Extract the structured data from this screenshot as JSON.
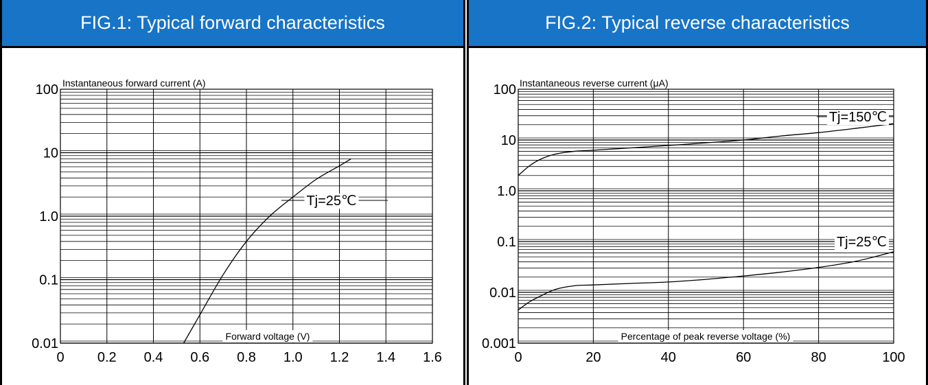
{
  "chart_data": [
    {
      "type": "line",
      "title": "FIG.1: Typical forward characteristics",
      "xlabel": "Forward voltage (V)",
      "ylabel": "Instantaneous forward current (A)",
      "xlim": [
        0,
        1.6
      ],
      "ylim": [
        0.01,
        100
      ],
      "yscale": "log",
      "grid": true,
      "x_ticks": [
        "0",
        "0.2",
        "0.4",
        "0.6",
        "0.8",
        "1.0",
        "1.2",
        "1.4",
        "1.6"
      ],
      "y_ticks": [
        "0.01",
        "0.1",
        "1.0",
        "10",
        "100"
      ],
      "annotations": [
        "Tj=25℃"
      ],
      "series": [
        {
          "name": "Tj=25℃",
          "x": [
            0.53,
            0.6,
            0.7,
            0.8,
            0.9,
            1.0,
            1.1,
            1.2,
            1.25
          ],
          "y": [
            0.01,
            0.028,
            0.12,
            0.4,
            1.0,
            2.0,
            3.8,
            6.2,
            8.0
          ]
        }
      ]
    },
    {
      "type": "line",
      "title": "FIG.2: Typical reverse characteristics",
      "xlabel": "Percentage of peak reverse voltage (%)",
      "ylabel": "Instantaneous reverse current (μA)",
      "xlim": [
        0,
        100
      ],
      "ylim": [
        0.001,
        100
      ],
      "yscale": "log",
      "grid": true,
      "x_ticks": [
        "0",
        "20",
        "40",
        "60",
        "80",
        "100"
      ],
      "y_ticks": [
        "0.001",
        "0.01",
        "0.1",
        "1.0",
        "10",
        "100"
      ],
      "annotations": [
        "Tj=150℃",
        "Tj=25℃"
      ],
      "series": [
        {
          "name": "Tj=150℃",
          "x": [
            0,
            3,
            6,
            10,
            15,
            20,
            30,
            40,
            50,
            60,
            70,
            80,
            90,
            100
          ],
          "y": [
            2.0,
            3.1,
            4.2,
            5.3,
            6.0,
            6.3,
            7.0,
            7.8,
            8.8,
            10.0,
            12.0,
            14.0,
            17.0,
            21.0
          ]
        },
        {
          "name": "Tj=25℃",
          "x": [
            0,
            3,
            6,
            10,
            15,
            20,
            30,
            40,
            50,
            60,
            70,
            80,
            90,
            100
          ],
          "y": [
            0.0045,
            0.0065,
            0.0085,
            0.0115,
            0.0135,
            0.014,
            0.015,
            0.016,
            0.018,
            0.021,
            0.025,
            0.031,
            0.041,
            0.063
          ]
        }
      ]
    }
  ]
}
